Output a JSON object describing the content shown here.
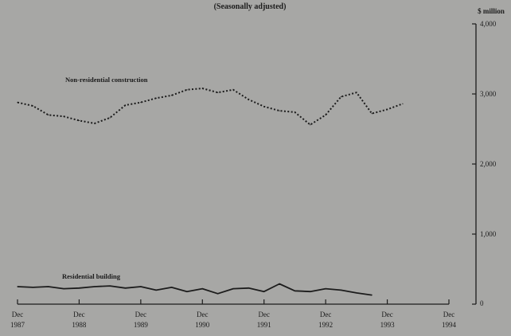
{
  "chart_data": {
    "type": "line",
    "subtitle": "(Seasonally adjusted)",
    "unit_label": "$ million",
    "y_ticks": [
      "0",
      "1,000",
      "2,000",
      "3,000",
      "4,000"
    ],
    "ylim": [
      0,
      4000
    ],
    "x_ticks": [
      {
        "month": "Dec",
        "year": "1987"
      },
      {
        "month": "Dec",
        "year": "1988"
      },
      {
        "month": "Dec",
        "year": "1989"
      },
      {
        "month": "Dec",
        "year": "1990"
      },
      {
        "month": "Dec",
        "year": "1991"
      },
      {
        "month": "Dec",
        "year": "1992"
      },
      {
        "month": "Dec",
        "year": "1993"
      },
      {
        "month": "Dec",
        "year": "1994"
      }
    ],
    "x_range": [
      "Dec 1987",
      "Dec 1994"
    ],
    "grid": false,
    "series": [
      {
        "name": "Non-residential construction",
        "style": "dotted",
        "color": "#1c1c1c",
        "points": [
          [
            "Dec 1987",
            2880
          ],
          [
            "Mar 1988",
            2830
          ],
          [
            "Jun 1988",
            2700
          ],
          [
            "Sep 1988",
            2680
          ],
          [
            "Dec 1988",
            2620
          ],
          [
            "Mar 1989",
            2580
          ],
          [
            "Jun 1989",
            2660
          ],
          [
            "Sep 1989",
            2840
          ],
          [
            "Dec 1989",
            2880
          ],
          [
            "Mar 1990",
            2940
          ],
          [
            "Jun 1990",
            2980
          ],
          [
            "Sep 1990",
            3060
          ],
          [
            "Dec 1990",
            3080
          ],
          [
            "Mar 1991",
            3020
          ],
          [
            "Jun 1991",
            3060
          ],
          [
            "Sep 1991",
            2920
          ],
          [
            "Dec 1991",
            2820
          ],
          [
            "Mar 1992",
            2760
          ],
          [
            "Jun 1992",
            2740
          ],
          [
            "Sep 1992",
            2560
          ],
          [
            "Dec 1992",
            2700
          ],
          [
            "Mar 1993",
            2960
          ],
          [
            "Jun 1993",
            3020
          ],
          [
            "Sep 1993",
            2720
          ],
          [
            "Dec 1993",
            2780
          ],
          [
            "Mar 1994",
            2860
          ]
        ]
      },
      {
        "name": "Residential building",
        "style": "solid",
        "color": "#1c1c1c",
        "points": [
          [
            "Dec 1987",
            250
          ],
          [
            "Mar 1988",
            240
          ],
          [
            "Jun 1988",
            250
          ],
          [
            "Sep 1988",
            220
          ],
          [
            "Dec 1988",
            230
          ],
          [
            "Mar 1989",
            250
          ],
          [
            "Jun 1989",
            260
          ],
          [
            "Sep 1989",
            230
          ],
          [
            "Dec 1989",
            250
          ],
          [
            "Mar 1990",
            200
          ],
          [
            "Jun 1990",
            240
          ],
          [
            "Sep 1990",
            180
          ],
          [
            "Dec 1990",
            220
          ],
          [
            "Mar 1991",
            150
          ],
          [
            "Jun 1991",
            220
          ],
          [
            "Sep 1991",
            230
          ],
          [
            "Dec 1991",
            180
          ],
          [
            "Mar 1992",
            290
          ],
          [
            "Jun 1992",
            190
          ],
          [
            "Sep 1992",
            180
          ],
          [
            "Dec 1992",
            220
          ],
          [
            "Mar 1993",
            200
          ],
          [
            "Jun 1993",
            160
          ],
          [
            "Sep 1993",
            130
          ]
        ]
      }
    ]
  }
}
